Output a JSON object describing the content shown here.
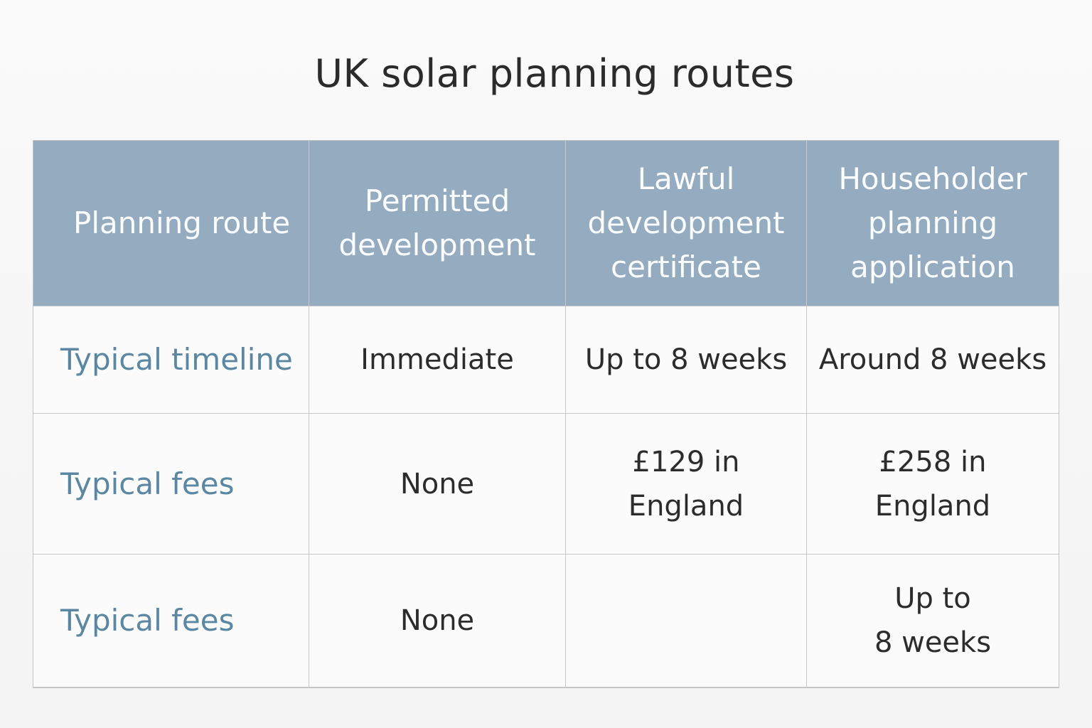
{
  "title": "UK solar planning routes",
  "table": {
    "header": [
      "Planning route",
      "Permitted\ndevelopment",
      "Lawful\ndevelopment\ncertificate",
      "Householder\nplanning\napplication"
    ],
    "rows": [
      {
        "label": "Typical timeline",
        "cells": [
          "Immediate",
          "Up to 8 weeks",
          "Around 8 weeks"
        ]
      },
      {
        "label": "Typical fees",
        "cells": [
          "None",
          "£129 in\nEngland",
          "£258 in\nEngland"
        ]
      },
      {
        "label": "Typical fees",
        "cells": [
          "None",
          "",
          "Up to\n8 weeks"
        ]
      }
    ]
  },
  "colors": {
    "header_bg": "#94abc0",
    "row_label": "#5b87a2",
    "text": "#2c2c2c"
  }
}
